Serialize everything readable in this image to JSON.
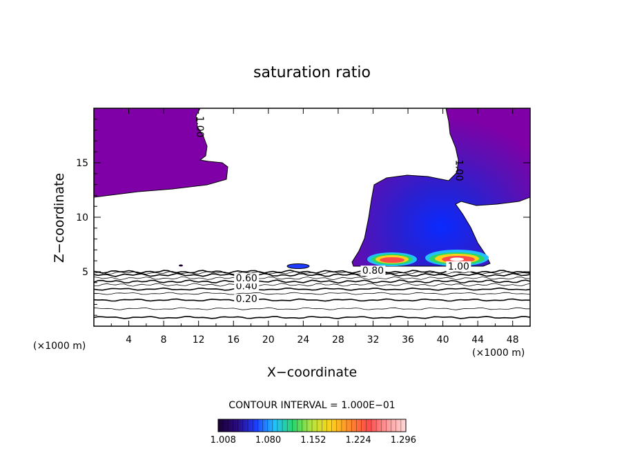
{
  "chart_data": {
    "type": "contour",
    "title": "saturation ratio",
    "xlabel": "X−coordinate",
    "ylabel": "Z−coordinate",
    "x_unit_label": "(×1000 m)",
    "y_unit_label": "(×1000 m)",
    "xlim": [
      0,
      50
    ],
    "ylim": [
      0,
      20
    ],
    "x_ticks": [
      4,
      8,
      12,
      16,
      20,
      24,
      28,
      32,
      36,
      40,
      44,
      48
    ],
    "y_ticks": [
      5,
      10,
      15
    ],
    "contour_interval_label": "CONTOUR INTERVAL = 1.000E−01",
    "contour_labels": [
      {
        "text": "0.20",
        "x": 17.5,
        "y": 2.2
      },
      {
        "text": "0.40",
        "x": 17.5,
        "y": 3.4
      },
      {
        "text": "0.60",
        "x": 17.5,
        "y": 4.1
      },
      {
        "text": "0.80",
        "x": 32.0,
        "y": 4.8
      },
      {
        "text": "1.00",
        "x": 41.8,
        "y": 5.2
      },
      {
        "text": "1.00",
        "x": 11.8,
        "y": 18.3
      },
      {
        "text": "1.00",
        "x": 41.5,
        "y": 14.3
      }
    ],
    "colorbar": {
      "tick_labels": [
        "1.008",
        "1.080",
        "1.152",
        "1.224",
        "1.296"
      ],
      "range": [
        1.0,
        1.3
      ],
      "colors": [
        "#1a0033",
        "#2a0a80",
        "#1e3cff",
        "#22c0ff",
        "#2bd66a",
        "#b8e43c",
        "#ffd21a",
        "#ff8a2a",
        "#ff4a4a",
        "#ff9a9a",
        "#ffd8d8"
      ]
    },
    "supersaturated_regions": [
      {
        "name": "upper-left",
        "color": "#7f00a6"
      },
      {
        "name": "anvil",
        "color": "#7f00a6"
      }
    ]
  }
}
